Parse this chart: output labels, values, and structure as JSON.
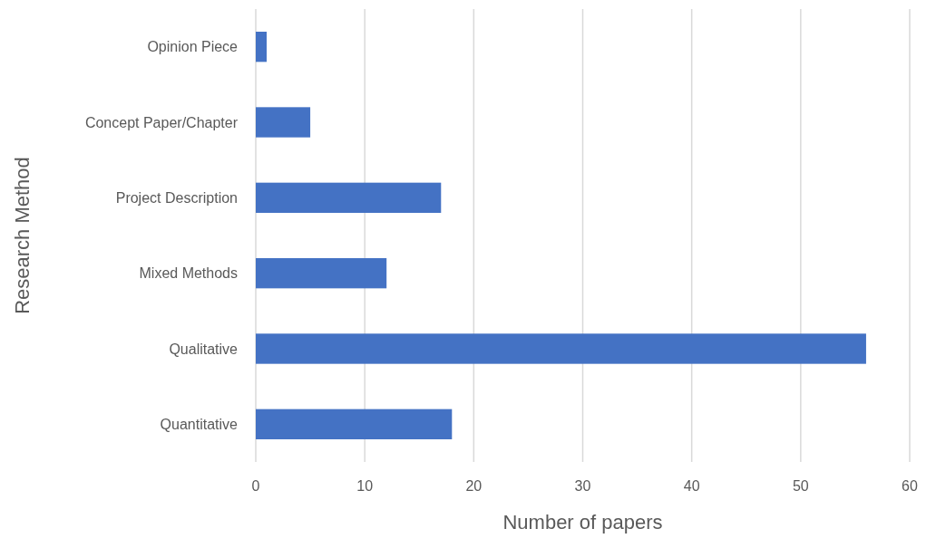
{
  "chart_data": {
    "type": "bar",
    "orientation": "horizontal",
    "xlabel": "Number of papers",
    "ylabel": "Research Method",
    "categories": [
      "Opinion Piece",
      "Concept Paper/Chapter",
      "Project Description",
      "Mixed Methods",
      "Qualitative",
      "Quantitative"
    ],
    "values": [
      1,
      5,
      17,
      12,
      56,
      18
    ],
    "color": "#4472c4",
    "xlim": [
      0,
      60
    ],
    "xticks": [
      0,
      10,
      20,
      30,
      40,
      50,
      60
    ],
    "grid": "x"
  }
}
